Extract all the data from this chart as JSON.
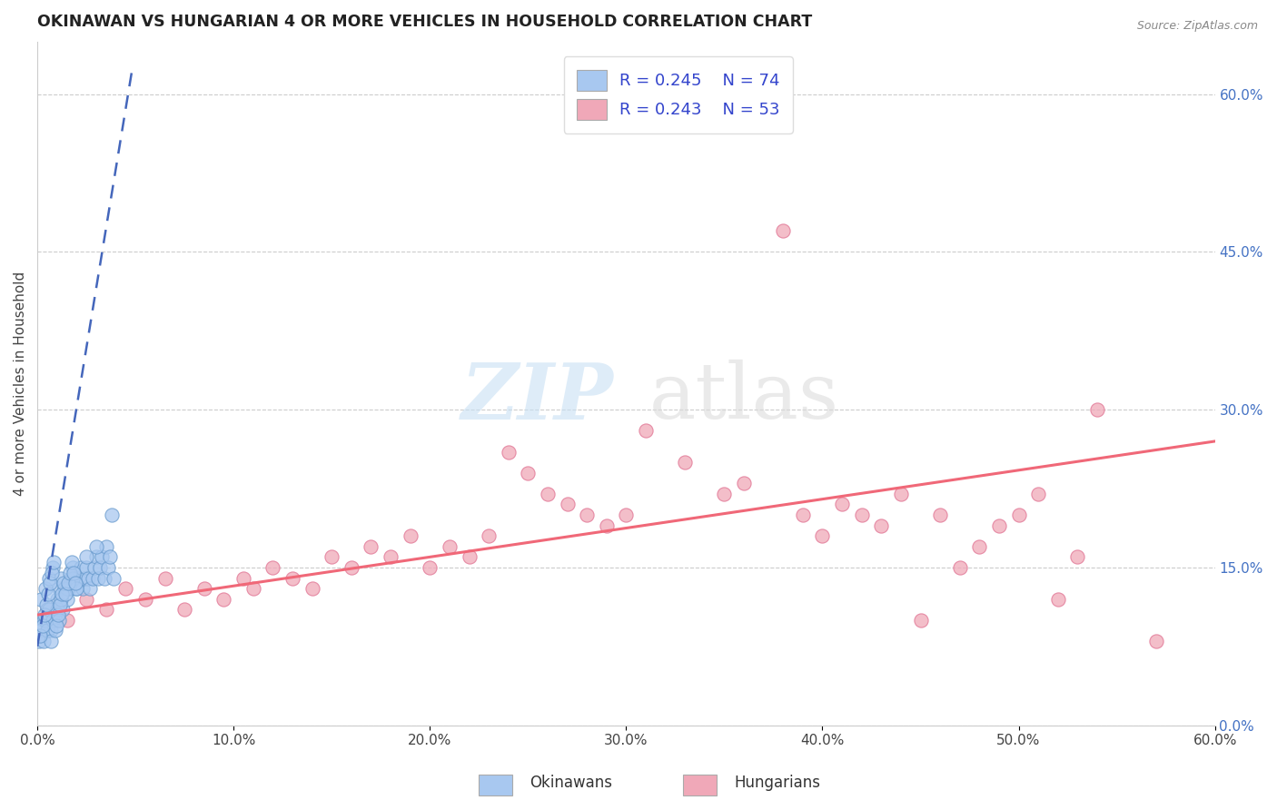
{
  "title": "OKINAWAN VS HUNGARIAN 4 OR MORE VEHICLES IN HOUSEHOLD CORRELATION CHART",
  "source": "Source: ZipAtlas.com",
  "ylabel": "4 or more Vehicles in Household",
  "x_ticks": [
    0.0,
    10.0,
    20.0,
    30.0,
    40.0,
    50.0,
    60.0
  ],
  "x_tick_labels": [
    "0.0%",
    "10.0%",
    "20.0%",
    "30.0%",
    "40.0%",
    "50.0%",
    "60.0%"
  ],
  "y_ticks_right": [
    0.0,
    15.0,
    30.0,
    45.0,
    60.0
  ],
  "y_tick_labels_right": [
    "0.0%",
    "15.0%",
    "30.0%",
    "45.0%",
    "60.0%"
  ],
  "xlim": [
    0.0,
    60.0
  ],
  "ylim": [
    0.0,
    65.0
  ],
  "legend_r_okinawan": "R = 0.245",
  "legend_n_okinawan": "N = 74",
  "legend_r_hungarian": "R = 0.243",
  "legend_n_hungarian": "N = 53",
  "okinawan_color": "#a8c8f0",
  "hungarian_color": "#f0a8b8",
  "okinawan_edge_color": "#6699cc",
  "hungarian_edge_color": "#e07090",
  "okinawan_line_color": "#4466bb",
  "hungarian_line_color": "#f06878",
  "background_color": "#ffffff",
  "grid_color": "#cccccc",
  "okinawan_x": [
    0.2,
    0.3,
    0.4,
    0.5,
    0.6,
    0.7,
    0.8,
    0.9,
    1.0,
    1.1,
    1.2,
    1.3,
    1.4,
    1.5,
    1.6,
    1.7,
    1.8,
    1.9,
    2.0,
    2.1,
    2.2,
    2.3,
    2.4,
    2.5,
    2.6,
    2.7,
    2.8,
    2.9,
    3.0,
    3.1,
    3.2,
    3.3,
    3.4,
    3.5,
    3.6,
    3.7,
    3.8,
    3.9,
    0.1,
    0.2,
    0.3,
    0.4,
    0.5,
    0.6,
    0.7,
    0.8,
    0.9,
    1.0,
    1.1,
    1.2,
    1.5,
    1.8,
    2.0,
    2.5,
    3.0,
    0.15,
    0.25,
    0.35,
    0.45,
    0.55,
    0.65,
    0.75,
    0.85,
    0.95,
    1.05,
    1.15,
    1.25,
    1.35,
    1.45,
    1.55,
    1.65,
    1.75,
    1.85,
    1.95
  ],
  "okinawan_y": [
    12.0,
    10.0,
    13.0,
    11.0,
    14.0,
    9.0,
    15.0,
    10.0,
    12.0,
    13.0,
    14.0,
    11.0,
    13.0,
    12.0,
    13.0,
    14.0,
    15.0,
    14.0,
    13.0,
    14.0,
    15.0,
    13.0,
    14.0,
    15.0,
    14.0,
    13.0,
    14.0,
    15.0,
    16.0,
    14.0,
    15.0,
    16.0,
    14.0,
    17.0,
    15.0,
    16.0,
    20.0,
    14.0,
    8.0,
    9.0,
    8.0,
    10.0,
    9.0,
    11.0,
    8.0,
    10.0,
    9.0,
    11.0,
    10.0,
    12.0,
    13.0,
    14.0,
    13.0,
    16.0,
    17.0,
    8.5,
    9.5,
    10.5,
    11.5,
    12.5,
    13.5,
    14.5,
    15.5,
    9.5,
    10.5,
    11.5,
    12.5,
    13.5,
    12.5,
    13.5,
    14.5,
    15.5,
    14.5,
    13.5
  ],
  "hungarian_x": [
    0.5,
    1.5,
    2.5,
    3.5,
    4.5,
    5.5,
    6.5,
    7.5,
    8.5,
    9.5,
    10.5,
    11.0,
    12.0,
    13.0,
    14.0,
    15.0,
    16.0,
    17.0,
    18.0,
    19.0,
    20.0,
    21.0,
    22.0,
    23.0,
    24.0,
    25.0,
    26.0,
    27.0,
    28.0,
    29.0,
    30.0,
    31.0,
    33.0,
    35.0,
    36.0,
    38.0,
    39.0,
    40.0,
    41.0,
    42.0,
    43.0,
    44.0,
    45.0,
    46.0,
    47.0,
    48.0,
    49.0,
    50.0,
    51.0,
    52.0,
    53.0,
    54.0,
    57.0
  ],
  "hungarian_y": [
    11.0,
    10.0,
    12.0,
    11.0,
    13.0,
    12.0,
    14.0,
    11.0,
    13.0,
    12.0,
    14.0,
    13.0,
    15.0,
    14.0,
    13.0,
    16.0,
    15.0,
    17.0,
    16.0,
    18.0,
    15.0,
    17.0,
    16.0,
    18.0,
    26.0,
    24.0,
    22.0,
    21.0,
    20.0,
    19.0,
    20.0,
    28.0,
    25.0,
    22.0,
    23.0,
    47.0,
    20.0,
    18.0,
    21.0,
    20.0,
    19.0,
    22.0,
    10.0,
    20.0,
    15.0,
    17.0,
    19.0,
    20.0,
    22.0,
    12.0,
    16.0,
    30.0,
    8.0
  ],
  "ok_line_x0": 0.0,
  "ok_line_y0": 7.5,
  "ok_line_x1": 4.8,
  "ok_line_y1": 62.0,
  "hu_line_x0": 0.0,
  "hu_line_y0": 10.5,
  "hu_line_x1": 60.0,
  "hu_line_y1": 27.0
}
